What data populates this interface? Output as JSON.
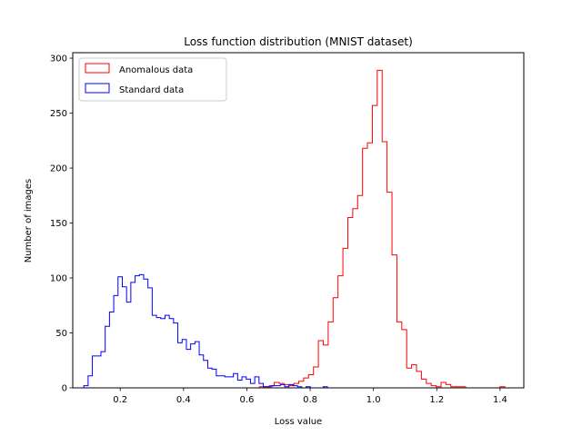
{
  "chart_data": {
    "type": "bar",
    "histtype": "step",
    "title": "Loss function distribution (MNIST dataset)",
    "xlabel": "Loss value",
    "ylabel": "Number of images",
    "xlim": [
      0.05,
      1.475
    ],
    "ylim": [
      0,
      305
    ],
    "xticks": [
      0.2,
      0.4,
      0.6,
      0.8,
      1.0,
      1.2,
      1.4
    ],
    "xtick_labels": [
      "0.2",
      "0.4",
      "0.6",
      "0.8",
      "1.0",
      "1.2",
      "1.4"
    ],
    "yticks": [
      0,
      50,
      100,
      150,
      200,
      250,
      300
    ],
    "ytick_labels": [
      "0",
      "50",
      "100",
      "150",
      "200",
      "250",
      "300"
    ],
    "grid": false,
    "legend": "top-left",
    "series": [
      {
        "name": "Anomalous data",
        "color": "#ff0000",
        "bin_edges": [
          0.64,
          0.6555,
          0.671,
          0.6865,
          0.702,
          0.7175,
          0.733,
          0.7485,
          0.764,
          0.7795,
          0.795,
          0.8105,
          0.826,
          0.8415,
          0.857,
          0.8725,
          0.888,
          0.9035,
          0.919,
          0.9345,
          0.95,
          0.9655,
          0.981,
          0.9965,
          1.012,
          1.0275,
          1.043,
          1.0585,
          1.074,
          1.0895,
          1.105,
          1.1205,
          1.136,
          1.1515,
          1.167,
          1.1825,
          1.198,
          1.2135,
          1.229,
          1.2445,
          1.26,
          1.2755,
          1.291,
          1.3065,
          1.322,
          1.3375,
          1.353,
          1.3685,
          1.384,
          1.3995,
          1.415
        ],
        "values": [
          1,
          1,
          2,
          5,
          4,
          3,
          2,
          4,
          6,
          9,
          12,
          19,
          43,
          39,
          60,
          82,
          102,
          127,
          155,
          163,
          175,
          218,
          223,
          257,
          289,
          224,
          178,
          121,
          60,
          53,
          18,
          21,
          15,
          8,
          4,
          2,
          1,
          5,
          3,
          1,
          1,
          1,
          0,
          0,
          0,
          0,
          0,
          0,
          0,
          1
        ]
      },
      {
        "name": "Standard data",
        "color": "#0000ff",
        "bin_edges": [
          0.085,
          0.0985,
          0.112,
          0.1255,
          0.139,
          0.1525,
          0.166,
          0.1795,
          0.193,
          0.2065,
          0.22,
          0.2335,
          0.247,
          0.2605,
          0.274,
          0.2875,
          0.301,
          0.3145,
          0.328,
          0.3415,
          0.355,
          0.3685,
          0.382,
          0.3955,
          0.409,
          0.4225,
          0.436,
          0.4495,
          0.463,
          0.4765,
          0.49,
          0.5035,
          0.517,
          0.5305,
          0.544,
          0.5575,
          0.571,
          0.5845,
          0.598,
          0.6115,
          0.625,
          0.6385,
          0.652,
          0.6655,
          0.679,
          0.6925,
          0.706,
          0.7195,
          0.733,
          0.7465,
          0.76,
          0.7735,
          0.787,
          0.8005,
          0.814,
          0.8275,
          0.841,
          0.8545,
          0.868,
          0.8815,
          0.895
        ],
        "values": [
          2,
          11,
          29,
          29,
          33,
          56,
          69,
          84,
          101,
          92,
          78,
          96,
          102,
          103,
          99,
          91,
          66,
          64,
          63,
          66,
          63,
          59,
          41,
          44,
          35,
          40,
          42,
          30,
          25,
          18,
          17,
          11,
          11,
          10,
          10,
          13,
          7,
          10,
          8,
          4,
          10,
          4,
          1,
          1,
          2,
          2,
          3,
          1,
          3,
          2,
          1,
          0,
          1,
          0,
          0,
          0,
          1,
          0,
          0,
          0
        ]
      }
    ]
  }
}
